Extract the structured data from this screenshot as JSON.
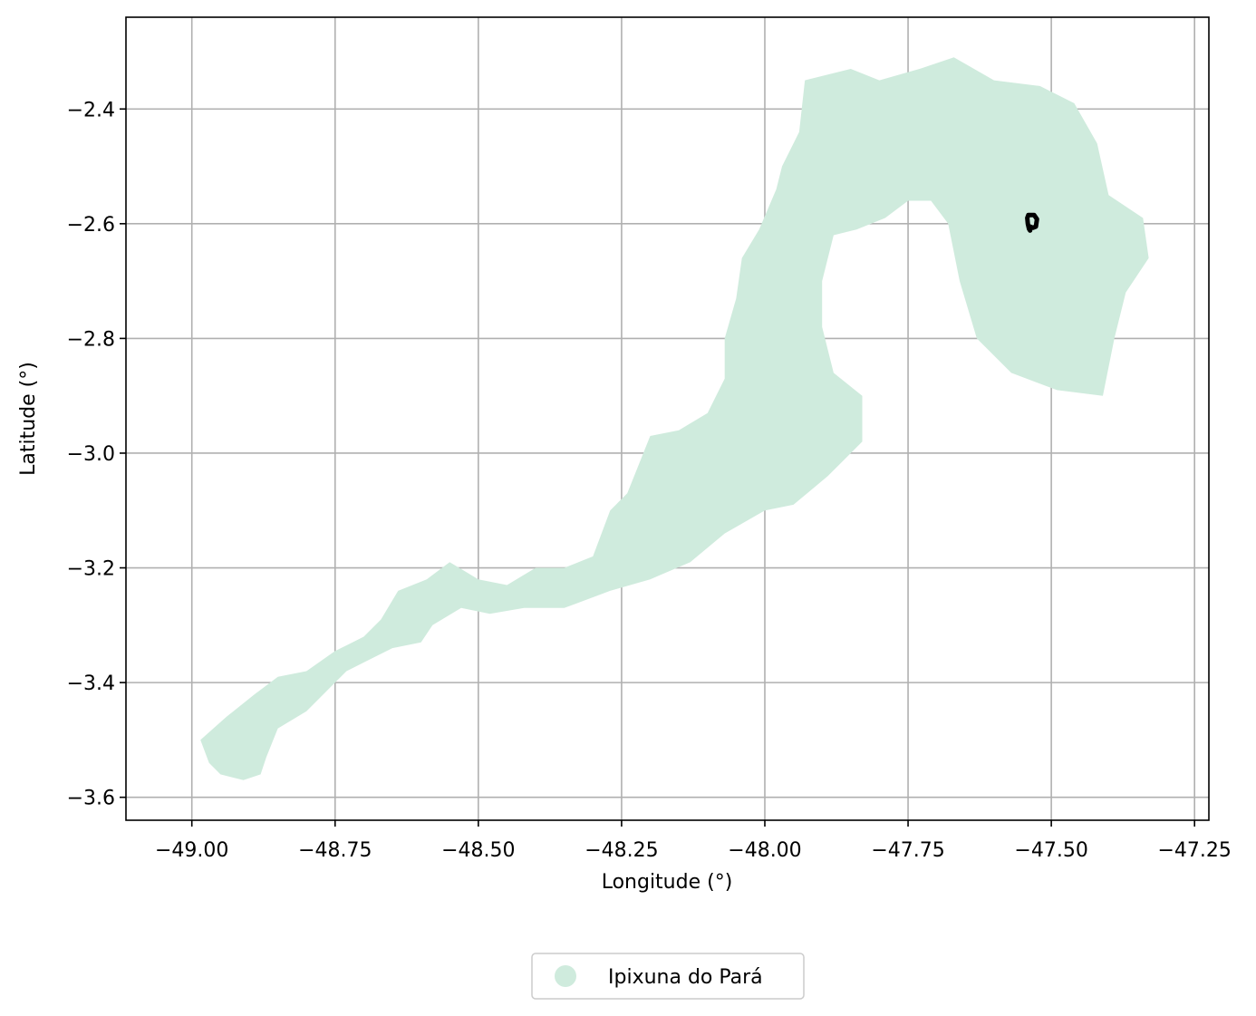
{
  "chart_data": {
    "type": "map",
    "xlabel": "Longitude (°)",
    "ylabel": "Latitude (°)",
    "xlim": [
      -49.115,
      -47.225
    ],
    "ylim": [
      -3.64,
      -2.24
    ],
    "xticks": [
      -49.0,
      -48.75,
      -48.5,
      -48.25,
      -48.0,
      -47.75,
      -47.5,
      -47.25
    ],
    "yticks": [
      -2.4,
      -2.6,
      -2.8,
      -3.0,
      -3.2,
      -3.4,
      -3.6
    ],
    "xtick_labels": [
      "−49.00",
      "−48.75",
      "−48.50",
      "−48.25",
      "−48.00",
      "−47.75",
      "−47.50",
      "−47.25"
    ],
    "ytick_labels": [
      "−2.4",
      "−2.6",
      "−2.8",
      "−3.0",
      "−3.2",
      "−3.4",
      "−3.6"
    ],
    "grid": true,
    "legend": {
      "placement": "bottom-center",
      "entries": [
        "Ipixuna do Pará"
      ]
    },
    "colors": {
      "region_fill": "#cfebdd",
      "marker": "#000000",
      "grid": "#b0b0b0"
    },
    "region": {
      "name": "Ipixuna do Pará",
      "outline": [
        [
          -48.97,
          -3.54
        ],
        [
          -48.985,
          -3.5
        ],
        [
          -48.94,
          -3.46
        ],
        [
          -48.89,
          -3.42
        ],
        [
          -48.85,
          -3.39
        ],
        [
          -48.8,
          -3.38
        ],
        [
          -48.75,
          -3.345
        ],
        [
          -48.7,
          -3.32
        ],
        [
          -48.67,
          -3.29
        ],
        [
          -48.64,
          -3.24
        ],
        [
          -48.59,
          -3.22
        ],
        [
          -48.55,
          -3.19
        ],
        [
          -48.5,
          -3.22
        ],
        [
          -48.45,
          -3.23
        ],
        [
          -48.4,
          -3.2
        ],
        [
          -48.35,
          -3.2
        ],
        [
          -48.3,
          -3.18
        ],
        [
          -48.27,
          -3.1
        ],
        [
          -48.24,
          -3.07
        ],
        [
          -48.2,
          -2.97
        ],
        [
          -48.15,
          -2.96
        ],
        [
          -48.1,
          -2.93
        ],
        [
          -48.07,
          -2.87
        ],
        [
          -48.07,
          -2.8
        ],
        [
          -48.05,
          -2.73
        ],
        [
          -48.04,
          -2.66
        ],
        [
          -48.01,
          -2.61
        ],
        [
          -47.98,
          -2.54
        ],
        [
          -47.97,
          -2.5
        ],
        [
          -47.94,
          -2.44
        ],
        [
          -47.93,
          -2.35
        ],
        [
          -47.85,
          -2.33
        ],
        [
          -47.8,
          -2.35
        ],
        [
          -47.73,
          -2.33
        ],
        [
          -47.67,
          -2.31
        ],
        [
          -47.6,
          -2.35
        ],
        [
          -47.52,
          -2.36
        ],
        [
          -47.46,
          -2.39
        ],
        [
          -47.42,
          -2.46
        ],
        [
          -47.4,
          -2.55
        ],
        [
          -47.34,
          -2.59
        ],
        [
          -47.33,
          -2.66
        ],
        [
          -47.37,
          -2.72
        ],
        [
          -47.39,
          -2.8
        ],
        [
          -47.41,
          -2.9
        ],
        [
          -47.49,
          -2.89
        ],
        [
          -47.57,
          -2.86
        ],
        [
          -47.63,
          -2.8
        ],
        [
          -47.66,
          -2.7
        ],
        [
          -47.68,
          -2.6
        ],
        [
          -47.71,
          -2.56
        ],
        [
          -47.75,
          -2.56
        ],
        [
          -47.79,
          -2.59
        ],
        [
          -47.84,
          -2.61
        ],
        [
          -47.88,
          -2.62
        ],
        [
          -47.9,
          -2.7
        ],
        [
          -47.9,
          -2.78
        ],
        [
          -47.88,
          -2.86
        ],
        [
          -47.83,
          -2.9
        ],
        [
          -47.83,
          -2.98
        ],
        [
          -47.89,
          -3.04
        ],
        [
          -47.95,
          -3.09
        ],
        [
          -48.0,
          -3.1
        ],
        [
          -48.07,
          -3.14
        ],
        [
          -48.13,
          -3.19
        ],
        [
          -48.2,
          -3.22
        ],
        [
          -48.27,
          -3.24
        ],
        [
          -48.35,
          -3.27
        ],
        [
          -48.42,
          -3.27
        ],
        [
          -48.48,
          -3.28
        ],
        [
          -48.53,
          -3.27
        ],
        [
          -48.58,
          -3.3
        ],
        [
          -48.6,
          -3.33
        ],
        [
          -48.65,
          -3.34
        ],
        [
          -48.69,
          -3.36
        ],
        [
          -48.73,
          -3.38
        ],
        [
          -48.76,
          -3.41
        ],
        [
          -48.8,
          -3.45
        ],
        [
          -48.85,
          -3.48
        ],
        [
          -48.87,
          -3.53
        ],
        [
          -48.88,
          -3.56
        ],
        [
          -48.91,
          -3.57
        ],
        [
          -48.95,
          -3.56
        ]
      ]
    },
    "marker_outline": [
      [
        -47.54,
        -2.585
      ],
      [
        -47.53,
        -2.585
      ],
      [
        -47.525,
        -2.592
      ],
      [
        -47.527,
        -2.605
      ],
      [
        -47.532,
        -2.607
      ],
      [
        -47.537,
        -2.605
      ],
      [
        -47.537,
        -2.612
      ],
      [
        -47.539,
        -2.609
      ],
      [
        -47.541,
        -2.6
      ],
      [
        -47.542,
        -2.59
      ]
    ]
  }
}
